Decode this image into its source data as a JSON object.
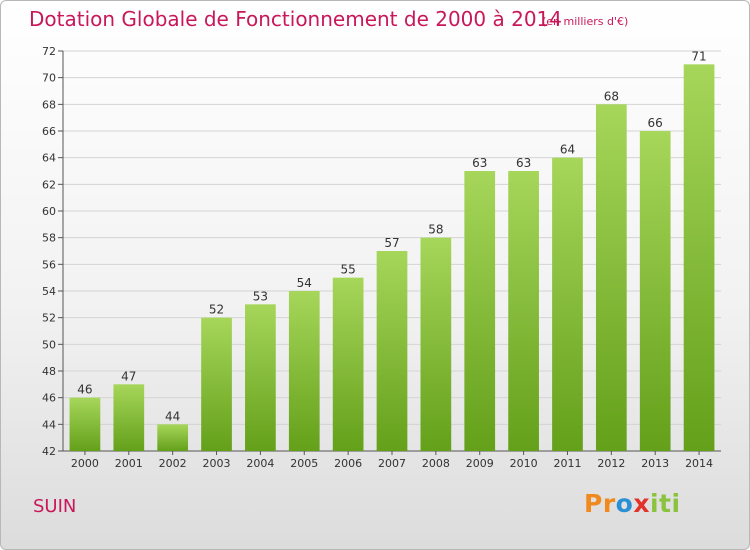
{
  "title": "Dotation Globale de Fonctionnement de 2000 à 2014",
  "unit_note": "(en milliers d'€)",
  "commune": "SUIN",
  "logo": {
    "text": "Proxiti",
    "colors": [
      "#f08a1e",
      "#2b8fd6",
      "#e2322a",
      "#8cc33e"
    ]
  },
  "colors": {
    "title": "#c8185a",
    "bar_light": "#a6d65a",
    "bar_dark": "#64a01a",
    "grid": "#d4d4d4"
  },
  "chart_data": {
    "type": "bar",
    "categories": [
      "2000",
      "2001",
      "2002",
      "2003",
      "2004",
      "2005",
      "2006",
      "2007",
      "2008",
      "2009",
      "2010",
      "2011",
      "2012",
      "2013",
      "2014"
    ],
    "values": [
      46,
      47,
      44,
      52,
      53,
      54,
      55,
      57,
      58,
      63,
      63,
      64,
      68,
      66,
      71
    ],
    "ylim": [
      42,
      72
    ],
    "yticks": [
      42,
      44,
      46,
      48,
      50,
      52,
      54,
      56,
      58,
      60,
      62,
      64,
      66,
      68,
      70,
      72
    ],
    "grid": true,
    "data_labels": true
  }
}
